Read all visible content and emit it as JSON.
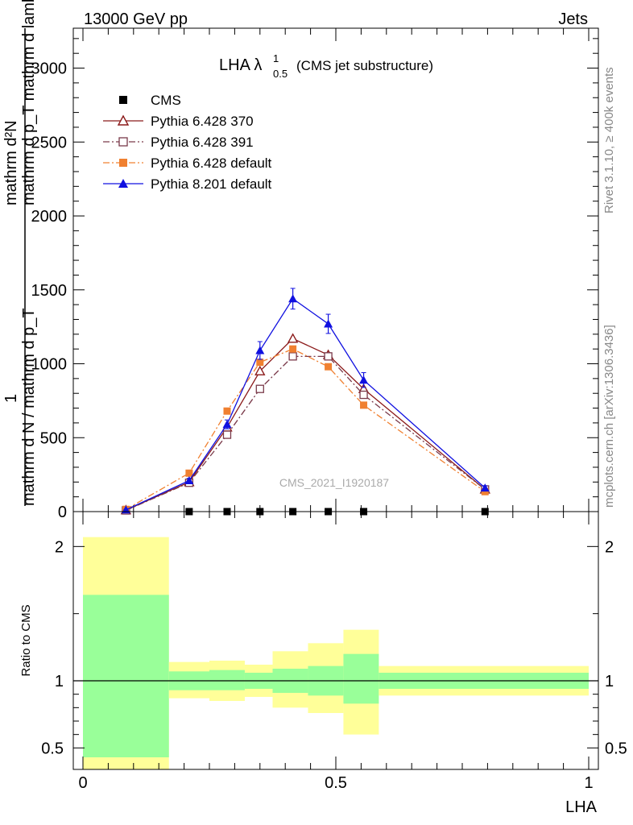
{
  "header": {
    "left": "13000 GeV pp",
    "right": "Jets"
  },
  "side_labels": {
    "rivet": "Rivet 3.1.10, ≥ 400k events",
    "mcplots": "mcplots.cern.ch [arXiv:1306.3436]"
  },
  "chart_data": [
    {
      "type": "line",
      "title_main": "LHA λ",
      "title_sup": "1",
      "title_sub": "0.5",
      "title_extra": "(CMS jet substructure)",
      "watermark": "CMS_2021_I1920187",
      "ylabel_top": "mathrm d²N",
      "ylabel_top2": "mathrm d p_T mathrm d lambda",
      "ylabel_one": "1",
      "ylabel_bottom": "mathrm d N / mathrm d p_T",
      "xlim": [
        -0.02,
        1.0
      ],
      "ylim": [
        0,
        3270
      ],
      "yticks": [
        0,
        500,
        1000,
        1500,
        2000,
        2500,
        3000
      ],
      "ytick_labels": [
        "0",
        "500",
        "1000",
        "1500",
        "2000",
        "2500",
        "3000"
      ],
      "legend_position": "top-left",
      "series": [
        {
          "name": "CMS",
          "color": "#000000",
          "marker": "filled-square",
          "x": [
            0.21,
            0.285,
            0.35,
            0.415,
            0.485,
            0.555,
            0.795
          ],
          "y": [
            0,
            0,
            0,
            0,
            0,
            0,
            0
          ]
        },
        {
          "name": "Pythia 6.428 370",
          "color": "#8b1a1a",
          "marker": "open-triangle",
          "dash": "solid",
          "x": [
            0.085,
            0.21,
            0.285,
            0.35,
            0.415,
            0.485,
            0.555,
            0.795
          ],
          "y": [
            10,
            200,
            570,
            950,
            1170,
            1060,
            830,
            150
          ]
        },
        {
          "name": "Pythia 6.428 391",
          "color": "#7a3a4a",
          "marker": "open-square",
          "dash": "dashdot",
          "x": [
            0.085,
            0.21,
            0.285,
            0.35,
            0.415,
            0.485,
            0.555,
            0.795
          ],
          "y": [
            8,
            195,
            520,
            830,
            1050,
            1050,
            790,
            150
          ]
        },
        {
          "name": "Pythia 6.428 default",
          "color": "#f08030",
          "marker": "filled-square",
          "dash": "dashdot",
          "x": [
            0.085,
            0.21,
            0.285,
            0.35,
            0.415,
            0.485,
            0.555,
            0.795
          ],
          "y": [
            15,
            260,
            680,
            1010,
            1100,
            980,
            720,
            135
          ]
        },
        {
          "name": "Pythia 8.201 default",
          "color": "#1010e0",
          "marker": "filled-triangle",
          "dash": "solid",
          "x": [
            0.085,
            0.21,
            0.285,
            0.35,
            0.415,
            0.485,
            0.555,
            0.795
          ],
          "y": [
            12,
            210,
            590,
            1090,
            1440,
            1270,
            890,
            160
          ],
          "yerr": [
            3,
            15,
            30,
            60,
            70,
            65,
            50,
            15
          ]
        }
      ]
    },
    {
      "type": "area",
      "ylabel": "Ratio to CMS",
      "xlabel": "LHA",
      "xlim": [
        -0.02,
        1.0
      ],
      "ylim": [
        0.34,
        2.26
      ],
      "yticks": [
        0.5,
        1,
        2
      ],
      "ytick_labels": [
        "0.5",
        "1",
        "2"
      ],
      "xticks": [
        0,
        0.5,
        1
      ],
      "xtick_labels": [
        "0",
        "0.5",
        "1"
      ],
      "bins": [
        {
          "x0": 0.0,
          "x1": 0.17,
          "stat_lo": 0.43,
          "stat_hi": 1.64,
          "tot_lo": 0.34,
          "tot_hi": 2.07
        },
        {
          "x0": 0.17,
          "x1": 0.25,
          "stat_lo": 0.93,
          "stat_hi": 1.07,
          "tot_lo": 0.87,
          "tot_hi": 1.14
        },
        {
          "x0": 0.25,
          "x1": 0.32,
          "stat_lo": 0.93,
          "stat_hi": 1.08,
          "tot_lo": 0.85,
          "tot_hi": 1.15
        },
        {
          "x0": 0.32,
          "x1": 0.375,
          "stat_lo": 0.94,
          "stat_hi": 1.06,
          "tot_lo": 0.88,
          "tot_hi": 1.12
        },
        {
          "x0": 0.375,
          "x1": 0.445,
          "stat_lo": 0.91,
          "stat_hi": 1.09,
          "tot_lo": 0.8,
          "tot_hi": 1.22
        },
        {
          "x0": 0.445,
          "x1": 0.515,
          "stat_lo": 0.89,
          "stat_hi": 1.11,
          "tot_lo": 0.76,
          "tot_hi": 1.28
        },
        {
          "x0": 0.515,
          "x1": 0.585,
          "stat_lo": 0.83,
          "stat_hi": 1.2,
          "tot_lo": 0.6,
          "tot_hi": 1.38
        },
        {
          "x0": 0.585,
          "x1": 1.0,
          "stat_lo": 0.94,
          "stat_hi": 1.06,
          "tot_lo": 0.89,
          "tot_hi": 1.11
        }
      ],
      "stat_color": "#99ff99",
      "tot_color": "#ffff99"
    }
  ]
}
